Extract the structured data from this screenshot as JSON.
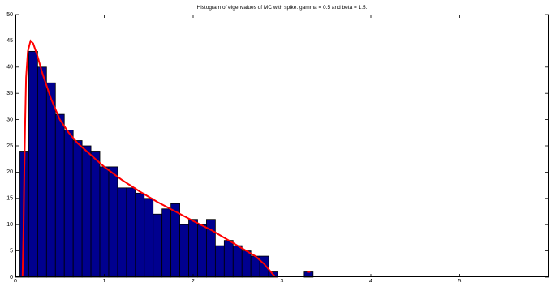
{
  "chart_data": {
    "type": "bar",
    "title": "Histogram of eigenvalues of MC with spike. gamma = 0.5 and beta = 1.5.",
    "xlabel": "",
    "ylabel": "",
    "xlim": [
      0,
      6
    ],
    "ylim": [
      0,
      50
    ],
    "xticks": [
      0,
      1,
      2,
      3,
      4,
      5
    ],
    "yticks": [
      0,
      5,
      10,
      15,
      20,
      25,
      30,
      35,
      40,
      45,
      50
    ],
    "grid": false,
    "bar_color": "#00008f",
    "curve_color": "#ff0000",
    "bin_width": 0.1,
    "bins_left_edges": [
      0.05,
      0.15,
      0.25,
      0.35,
      0.45,
      0.55,
      0.65,
      0.75,
      0.85,
      0.95,
      1.05,
      1.15,
      1.25,
      1.35,
      1.45,
      1.55,
      1.65,
      1.75,
      1.85,
      1.95,
      2.05,
      2.15,
      2.25,
      2.35,
      2.45,
      2.55,
      2.65,
      2.75,
      2.85,
      3.25
    ],
    "counts": [
      24,
      43,
      40,
      37,
      31,
      28,
      26,
      25,
      24,
      21,
      21,
      17,
      17,
      16,
      15,
      12,
      13,
      14,
      10,
      11,
      10,
      11,
      6,
      7,
      6,
      5,
      4,
      4,
      1,
      1
    ],
    "density_curve": {
      "x": [
        0.08,
        0.09,
        0.1,
        0.11,
        0.12,
        0.14,
        0.17,
        0.2,
        0.25,
        0.3,
        0.4,
        0.5,
        0.6,
        0.7,
        0.8,
        0.9,
        1.0,
        1.2,
        1.4,
        1.6,
        1.8,
        2.0,
        2.2,
        2.4,
        2.6,
        2.7,
        2.8,
        2.85,
        2.9,
        2.93
      ],
      "y": [
        0,
        8,
        20,
        30,
        38,
        43,
        45,
        44.5,
        42,
        39,
        34,
        30,
        27.5,
        25.5,
        24,
        22.5,
        21,
        18.5,
        16.3,
        14.3,
        12.5,
        10.7,
        9,
        7,
        5,
        4,
        2.5,
        1.5,
        0.5,
        0
      ]
    },
    "spike_marker": {
      "x": 3.3,
      "y": 1
    }
  }
}
